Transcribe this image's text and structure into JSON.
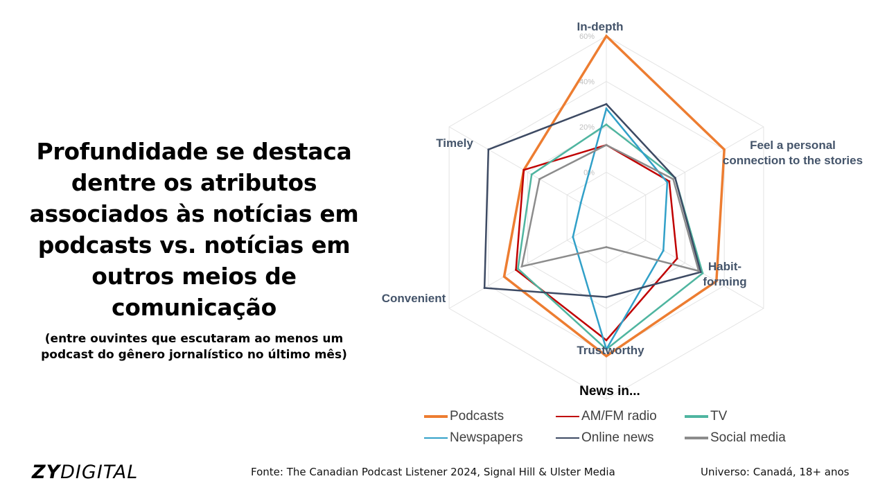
{
  "headline": {
    "title": "Profundidade se destaca dentre os atributos associados às notícias em podcasts vs. notícias em outros meios de comunicação",
    "subtitle": "(entre ouvintes que escutaram ao menos um podcast do gênero jornalístico no último mês)"
  },
  "footer": {
    "logo_bold": "ZY",
    "logo_rest": "DIGITAL",
    "source": "Fonte: The Canadian Podcast Listener 2024, Signal Hill & Ulster Media",
    "universe": "Universo: Canadá, 18+ anos"
  },
  "chart_data": {
    "type": "radar",
    "legend_title": "News in...",
    "axes": [
      "In-depth",
      "Feel a personal connection to the stories",
      "Habit-forming",
      "Trustworthy",
      "Convenient",
      "Timely"
    ],
    "axis_label_lines": [
      [
        "In-depth"
      ],
      [
        "Feel a personal",
        "connection to the stories"
      ],
      [
        "Habit-",
        "forming"
      ],
      [
        "Trustworthy"
      ],
      [
        "Convenient"
      ],
      [
        "Timely"
      ]
    ],
    "ticks": [
      "0%",
      "20%",
      "40%",
      "60%"
    ],
    "range": [
      -20,
      60
    ],
    "grid": true,
    "legend_position": "bottom",
    "series": [
      {
        "name": "Podcasts",
        "color": "#ed7d31",
        "values": [
          60,
          40,
          36,
          41,
          32,
          22
        ]
      },
      {
        "name": "AM/FM radio",
        "color": "#c00000",
        "values": [
          12,
          12,
          16,
          34,
          26,
          22
        ]
      },
      {
        "name": "TV",
        "color": "#4fb5a0",
        "values": [
          21,
          15,
          29,
          38,
          25,
          18
        ]
      },
      {
        "name": "Newspapers",
        "color": "#31a0c8",
        "values": [
          28,
          11,
          9,
          38,
          -3,
          -7
        ]
      },
      {
        "name": "Online news",
        "color": "#3d4a63",
        "values": [
          30,
          15,
          28,
          15,
          42,
          40
        ]
      },
      {
        "name": "Social media",
        "color": "#8c8c8c",
        "values": [
          12,
          14,
          27,
          -7,
          23,
          14
        ]
      }
    ]
  }
}
